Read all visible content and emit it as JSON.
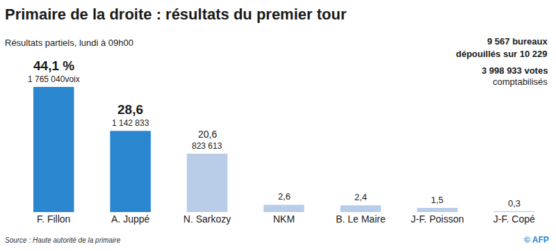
{
  "chart_data": {
    "type": "bar",
    "title": "Primaire de la droite : résultats du premier tour",
    "subtitle": "Résultats partiels, lundi à 09h00",
    "annotations": [
      "9 567 bureaux",
      "dépouillés sur 10 229",
      "3 998 933 votes",
      "comptabilisés"
    ],
    "source": "Source : Haute autorité de la primaire",
    "credit": "© AFP",
    "categories": [
      "F. Fillon",
      "A. Juppé",
      "N. Sarkozy",
      "NKM",
      "B. Le Maire",
      "J-F. Poisson",
      "J-F. Copé"
    ],
    "values": [
      44.1,
      28.6,
      20.6,
      2.6,
      2.4,
      1.5,
      0.3
    ],
    "value_labels": [
      "44,1 %",
      "28,6",
      "20,6",
      "2,6",
      "2,4",
      "1,5",
      "0,3"
    ],
    "votes": [
      1765040,
      1142833,
      823613,
      null,
      null,
      null,
      null
    ],
    "votes_labels": [
      "1 765 040voix",
      "1 142 833",
      "823 613",
      null,
      null,
      null,
      null
    ],
    "colors": [
      "#2b86d0",
      "#2b86d0",
      "#b9cde9",
      "#b9cde9",
      "#b9cde9",
      "#b9cde9",
      "#b9cde9"
    ],
    "data_labels": true,
    "tick_labels": "x",
    "grid": false
  }
}
